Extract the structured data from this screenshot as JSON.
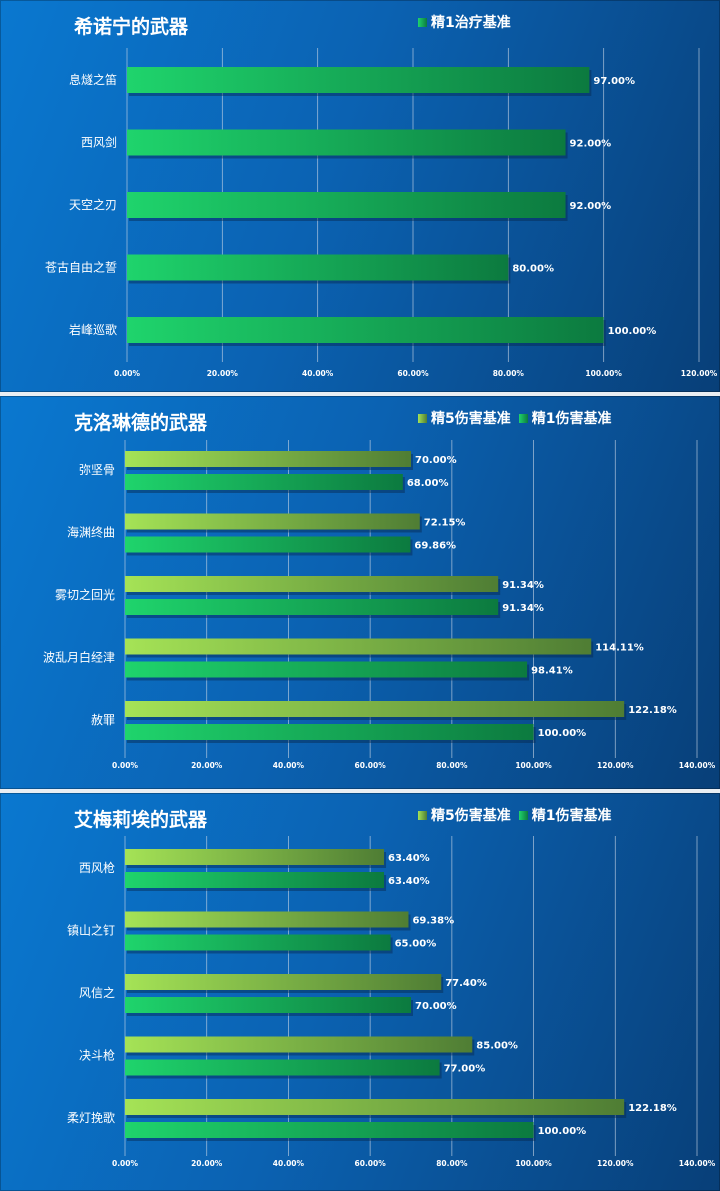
{
  "colors": {
    "p1_light": "#a5e356",
    "p1_dark": "#4f7d34",
    "r1_light": "#1fd46c",
    "r1_dark": "#0c7a3f",
    "grid": "#c9d6e6"
  },
  "chart_data": [
    {
      "type": "bar",
      "orientation": "horizontal",
      "title": "希诺宁的武器",
      "categories": [
        "息燧之笛",
        "西风剑",
        "天空之刃",
        "苍古自由之誓",
        "岩峰巡歌"
      ],
      "series": [
        {
          "name": "精1治疗基准",
          "values": [
            97.0,
            92.0,
            92.0,
            80.0,
            100.0
          ],
          "labels": [
            "97.00%",
            "92.00%",
            "92.00%",
            "80.00%",
            "100.00%"
          ],
          "style": "r1"
        }
      ],
      "xlim": [
        0,
        120
      ],
      "xticks": [
        "0.00%",
        "20.00%",
        "40.00%",
        "60.00%",
        "80.00%",
        "100.00%",
        "120.00%"
      ],
      "grid": true,
      "legend": "top"
    },
    {
      "type": "bar",
      "orientation": "horizontal",
      "title": "克洛琳德的武器",
      "categories": [
        "弥坚骨",
        "海渊终曲",
        "雾切之回光",
        "波乱月白经津",
        "赦罪"
      ],
      "series": [
        {
          "name": "精5伤害基准",
          "values": [
            70.0,
            72.15,
            91.34,
            114.11,
            122.18
          ],
          "labels": [
            "70.00%",
            "72.15%",
            "91.34%",
            "114.11%",
            "122.18%"
          ],
          "style": "p5"
        },
        {
          "name": "精1伤害基准",
          "values": [
            68.0,
            69.86,
            91.34,
            98.41,
            100.0
          ],
          "labels": [
            "68.00%",
            "69.86%",
            "91.34%",
            "98.41%",
            "100.00%"
          ],
          "style": "r1"
        }
      ],
      "xlim": [
        0,
        140
      ],
      "xticks": [
        "0.00%",
        "20.00%",
        "40.00%",
        "60.00%",
        "80.00%",
        "100.00%",
        "120.00%",
        "140.00%"
      ],
      "grid": true,
      "legend": "top"
    },
    {
      "type": "bar",
      "orientation": "horizontal",
      "title": "艾梅莉埃的武器",
      "categories": [
        "西风枪",
        "镇山之钉",
        "风信之",
        "决斗枪",
        "柔灯挽歌"
      ],
      "series": [
        {
          "name": "精5伤害基准",
          "values": [
            63.4,
            69.38,
            77.4,
            85.0,
            122.18
          ],
          "labels": [
            "63.40%",
            "69.38%",
            "77.40%",
            "85.00%",
            "122.18%"
          ],
          "style": "p5"
        },
        {
          "name": "精1伤害基准",
          "values": [
            63.4,
            65.0,
            70.0,
            77.0,
            100.0
          ],
          "labels": [
            "63.40%",
            "65.00%",
            "70.00%",
            "77.00%",
            "100.00%"
          ],
          "style": "r1"
        }
      ],
      "xlim": [
        0,
        140
      ],
      "xticks": [
        "0.00%",
        "20.00%",
        "40.00%",
        "60.00%",
        "80.00%",
        "100.00%",
        "120.00%",
        "140.00%"
      ],
      "grid": true,
      "legend": "top"
    }
  ]
}
